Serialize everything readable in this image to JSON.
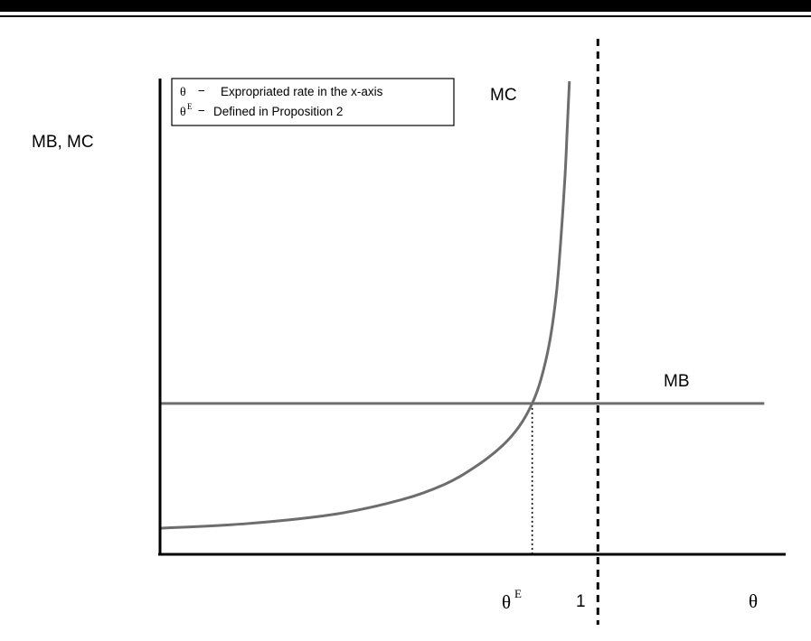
{
  "chart_data": {
    "type": "line",
    "title": "",
    "ylabel": "MB, MC",
    "xlabel": "θ",
    "xlim": [
      0,
      1.4
    ],
    "ylim": [
      0,
      1
    ],
    "x_ticks": [
      {
        "value": 0.85,
        "label": "θ",
        "sup": "E",
        "name": "theta-e"
      },
      {
        "value": 1.0,
        "label": "1",
        "name": "one"
      }
    ],
    "series": [
      {
        "name": "MC",
        "color": "#6d6d6d",
        "x": [
          0.0,
          0.2,
          0.4,
          0.55,
          0.65,
          0.72,
          0.78,
          0.82,
          0.85,
          0.87,
          0.89,
          0.905,
          0.915,
          0.925,
          0.93,
          0.935
        ],
        "y": [
          0.055,
          0.065,
          0.085,
          0.115,
          0.148,
          0.185,
          0.228,
          0.27,
          0.319,
          0.37,
          0.45,
          0.55,
          0.66,
          0.8,
          0.9,
          1.0
        ]
      },
      {
        "name": "MB",
        "color": "#6d6d6d",
        "x": [
          0.0,
          1.38
        ],
        "y": [
          0.319,
          0.319
        ]
      }
    ],
    "reference_lines": [
      {
        "x": 1.0,
        "style": "dashed",
        "name": "theta-equals-one"
      },
      {
        "x": 0.85,
        "style": "dotted",
        "to_series": "MB",
        "name": "theta-e-drop"
      }
    ],
    "legend": {
      "placement": "top-left",
      "entries": [
        {
          "symbol": "θ",
          "sup": "",
          "dash": "−",
          "text": "Expropriated rate in the x-axis"
        },
        {
          "symbol": "θ",
          "sup": "E",
          "dash": "−",
          "text": "Defined in Proposition 2"
        }
      ]
    }
  }
}
